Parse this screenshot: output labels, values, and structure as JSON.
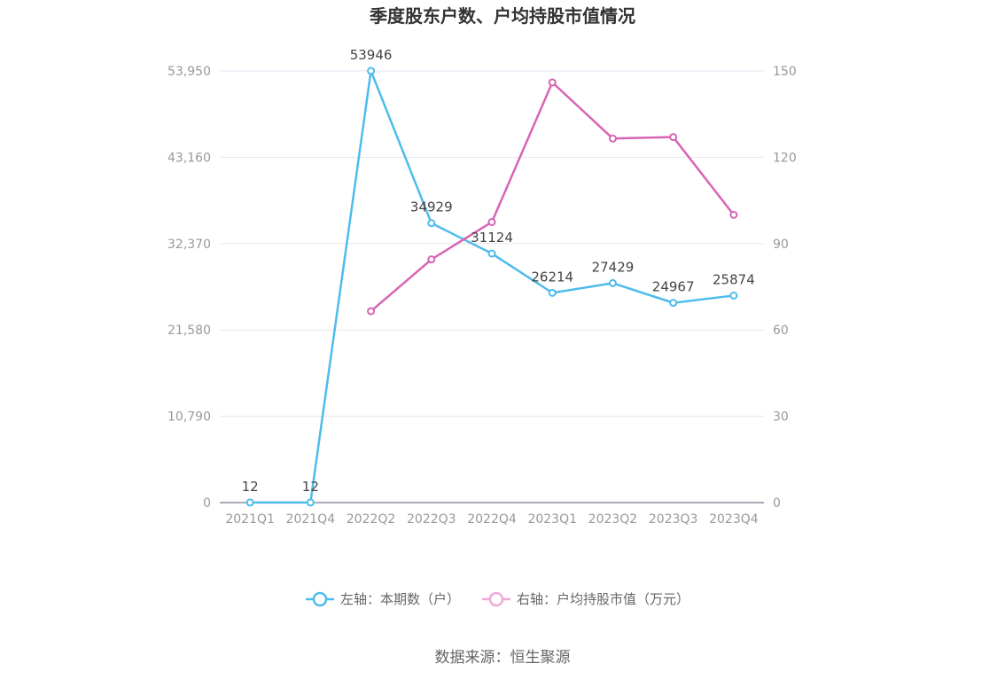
{
  "title": "季度股东户数、户均持股市值情况",
  "source": "数据来源：恒生聚源",
  "colors": {
    "left": "#4dbcec",
    "right": "#d765b4",
    "grid": "#e3e6f2",
    "axis": "#8d8f9e"
  },
  "chart_data": {
    "type": "line",
    "categories": [
      "2021Q1",
      "2021Q4",
      "2022Q2",
      "2022Q3",
      "2022Q4",
      "2023Q1",
      "2023Q2",
      "2023Q3",
      "2023Q4"
    ],
    "left_axis": {
      "ylim": [
        0,
        53950
      ],
      "ticks": [
        "0",
        "10,790",
        "21,580",
        "32,370",
        "43,160",
        "53,950"
      ]
    },
    "right_axis": {
      "ylim": [
        0,
        150
      ],
      "ticks": [
        "0",
        "30",
        "60",
        "90",
        "120",
        "150"
      ]
    },
    "series": [
      {
        "name": "左轴：本期数（户）",
        "axis": "left",
        "values": [
          12,
          12,
          53946,
          34929,
          31124,
          26214,
          27429,
          24967,
          25874
        ],
        "labels": [
          "12",
          "12",
          "53946",
          "34929",
          "31124",
          "26214",
          "27429",
          "24967",
          "25874"
        ]
      },
      {
        "name": "右轴：户均持股市值（万元）",
        "axis": "right",
        "values": [
          null,
          null,
          66.5,
          84.5,
          97.5,
          146,
          126.5,
          127,
          100
        ]
      }
    ],
    "grid": true,
    "legend_position": "bottom"
  }
}
